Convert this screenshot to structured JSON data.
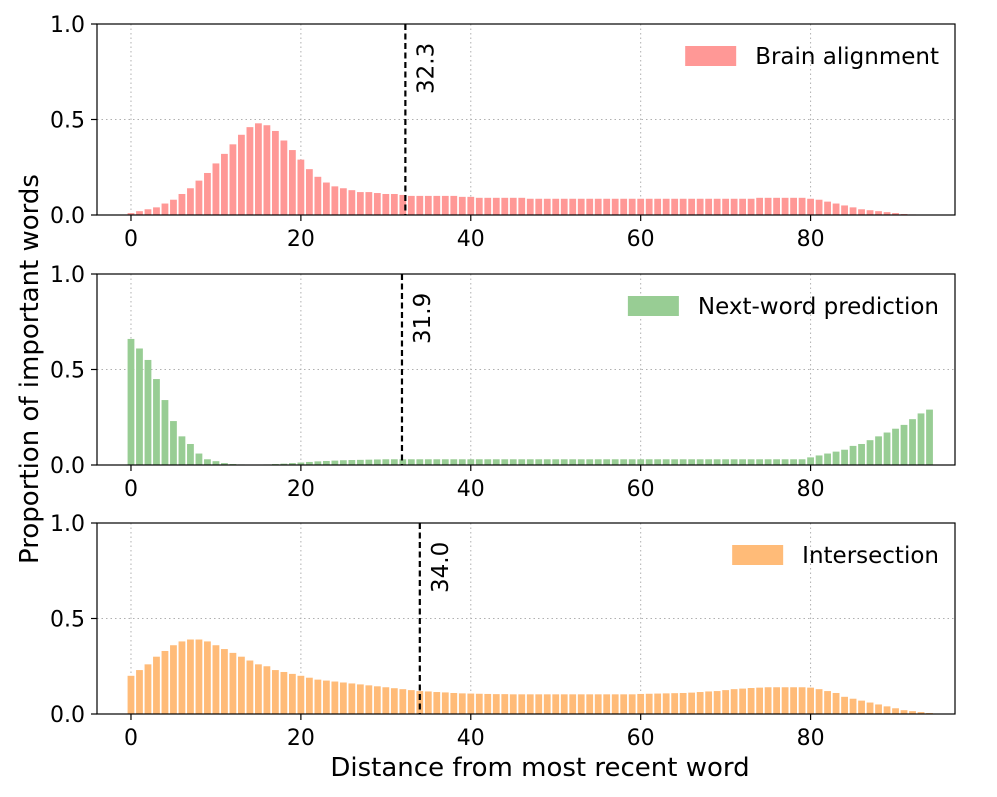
{
  "chart_data": {
    "type": "bar",
    "xlabel": "Distance from most recent word",
    "ylabel": "Proportion of important words",
    "x": [
      0,
      1,
      2,
      3,
      4,
      5,
      6,
      7,
      8,
      9,
      10,
      11,
      12,
      13,
      14,
      15,
      16,
      17,
      18,
      19,
      20,
      21,
      22,
      23,
      24,
      25,
      26,
      27,
      28,
      29,
      30,
      31,
      32,
      33,
      34,
      35,
      36,
      37,
      38,
      39,
      40,
      41,
      42,
      43,
      44,
      45,
      46,
      47,
      48,
      49,
      50,
      51,
      52,
      53,
      54,
      55,
      56,
      57,
      58,
      59,
      60,
      61,
      62,
      63,
      64,
      65,
      66,
      67,
      68,
      69,
      70,
      71,
      72,
      73,
      74,
      75,
      76,
      77,
      78,
      79,
      80,
      81,
      82,
      83,
      84,
      85,
      86,
      87,
      88,
      89,
      90,
      91,
      92,
      93,
      94
    ],
    "xlim": [
      -4,
      97
    ],
    "xticks": [
      0,
      20,
      40,
      60,
      80
    ],
    "ylim": [
      0,
      1.0
    ],
    "yticks": [
      0.0,
      0.5,
      1.0
    ],
    "ytick_labels": [
      "0.0",
      "0.5",
      "1.0"
    ],
    "grid": true,
    "legend_position": "top-right",
    "panels": [
      {
        "name": "Brain alignment",
        "color": "#ff9896",
        "vline_x": 32.3,
        "vline_label": "32.3",
        "values": [
          0.01,
          0.02,
          0.03,
          0.04,
          0.06,
          0.08,
          0.11,
          0.14,
          0.18,
          0.22,
          0.27,
          0.32,
          0.37,
          0.42,
          0.46,
          0.48,
          0.47,
          0.44,
          0.39,
          0.34,
          0.29,
          0.24,
          0.2,
          0.17,
          0.15,
          0.14,
          0.13,
          0.12,
          0.12,
          0.115,
          0.11,
          0.11,
          0.105,
          0.1,
          0.1,
          0.1,
          0.1,
          0.1,
          0.1,
          0.095,
          0.095,
          0.09,
          0.09,
          0.09,
          0.09,
          0.09,
          0.09,
          0.085,
          0.085,
          0.085,
          0.085,
          0.085,
          0.085,
          0.085,
          0.085,
          0.085,
          0.085,
          0.085,
          0.085,
          0.085,
          0.085,
          0.085,
          0.085,
          0.085,
          0.085,
          0.085,
          0.085,
          0.085,
          0.085,
          0.085,
          0.085,
          0.085,
          0.085,
          0.085,
          0.09,
          0.09,
          0.09,
          0.09,
          0.09,
          0.09,
          0.085,
          0.08,
          0.07,
          0.06,
          0.05,
          0.04,
          0.03,
          0.025,
          0.02,
          0.015,
          0.01,
          0.005,
          0.003,
          0.002,
          0.001
        ]
      },
      {
        "name": "Next-word prediction",
        "color": "#98cd94",
        "vline_x": 31.9,
        "vline_label": "31.9",
        "values": [
          0.66,
          0.61,
          0.55,
          0.45,
          0.34,
          0.23,
          0.15,
          0.11,
          0.06,
          0.03,
          0.02,
          0.01,
          0.005,
          0.003,
          0.002,
          0.002,
          0.003,
          0.005,
          0.007,
          0.01,
          0.013,
          0.016,
          0.019,
          0.021,
          0.023,
          0.025,
          0.026,
          0.027,
          0.028,
          0.029,
          0.03,
          0.03,
          0.03,
          0.03,
          0.03,
          0.03,
          0.03,
          0.03,
          0.03,
          0.03,
          0.03,
          0.03,
          0.03,
          0.03,
          0.03,
          0.03,
          0.03,
          0.03,
          0.03,
          0.03,
          0.03,
          0.03,
          0.03,
          0.03,
          0.03,
          0.03,
          0.03,
          0.03,
          0.03,
          0.03,
          0.03,
          0.03,
          0.03,
          0.03,
          0.03,
          0.03,
          0.03,
          0.03,
          0.03,
          0.03,
          0.03,
          0.03,
          0.03,
          0.03,
          0.03,
          0.03,
          0.03,
          0.03,
          0.03,
          0.03,
          0.04,
          0.05,
          0.06,
          0.07,
          0.08,
          0.1,
          0.11,
          0.13,
          0.15,
          0.17,
          0.19,
          0.21,
          0.24,
          0.27,
          0.29
        ]
      },
      {
        "name": "Intersection",
        "color": "#ffbb78",
        "vline_x": 34.0,
        "vline_label": "34.0",
        "values": [
          0.2,
          0.23,
          0.26,
          0.3,
          0.33,
          0.36,
          0.38,
          0.39,
          0.39,
          0.38,
          0.36,
          0.34,
          0.32,
          0.3,
          0.28,
          0.26,
          0.25,
          0.23,
          0.22,
          0.21,
          0.2,
          0.19,
          0.18,
          0.175,
          0.17,
          0.165,
          0.16,
          0.155,
          0.15,
          0.145,
          0.14,
          0.135,
          0.13,
          0.125,
          0.12,
          0.118,
          0.115,
          0.113,
          0.11,
          0.108,
          0.107,
          0.106,
          0.105,
          0.104,
          0.104,
          0.103,
          0.103,
          0.103,
          0.103,
          0.103,
          0.103,
          0.103,
          0.103,
          0.103,
          0.103,
          0.103,
          0.103,
          0.103,
          0.103,
          0.103,
          0.105,
          0.106,
          0.107,
          0.108,
          0.109,
          0.11,
          0.112,
          0.115,
          0.118,
          0.12,
          0.125,
          0.13,
          0.133,
          0.136,
          0.138,
          0.14,
          0.14,
          0.14,
          0.14,
          0.14,
          0.138,
          0.13,
          0.12,
          0.11,
          0.09,
          0.08,
          0.07,
          0.06,
          0.05,
          0.04,
          0.03,
          0.02,
          0.015,
          0.01,
          0.005
        ]
      }
    ]
  }
}
